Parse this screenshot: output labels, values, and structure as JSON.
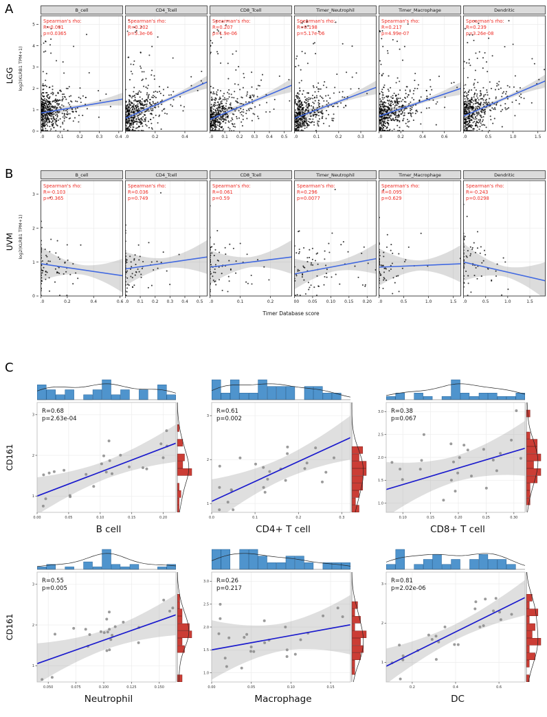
{
  "chart_data": {
    "type": "scatter",
    "description": "Correlation scatter panels: immune cell infiltration scores vs KLRB1/CD161 expression",
    "colors": {
      "trend_ab": "#4169E1",
      "trend_c": "#1a1acd",
      "band": "#969696",
      "annotation_ab": "#EE2B24",
      "annotation_c": "#111111",
      "strip_bg": "#DBDBDB",
      "hist_top": "#4F94CD",
      "hist_right": "#CB3D35",
      "grid": "#EBEBEB",
      "point_ab": "#000000",
      "point_c": "#8a8a8a"
    },
    "panels": {
      "A": {
        "letter": "A",
        "row_label": "LGG",
        "y_label": "log2(KLRB1 TPM+1)",
        "y_domain": [
          0,
          5.4
        ],
        "y_ticks": [
          0,
          1,
          2,
          3,
          4,
          5
        ],
        "n_points": 480,
        "plots": [
          {
            "title": "B_cell",
            "stats_header": "Spearman's rho:",
            "r": "R=0.091",
            "p": "p=0.0365",
            "x_domain": [
              0,
              0.42
            ],
            "x_ticks": [
              0,
              0.1,
              0.2,
              0.3,
              0.4
            ],
            "x_tick_labels": [
              "0.0",
              "0.1",
              "0.2",
              "0.3",
              "0.4"
            ],
            "x_scale": 0.06,
            "trend": {
              "y0": 0.85,
              "y1": 1.5
            },
            "noise": 0.5,
            "band": [
              0.08,
              0.3
            ],
            "high_frac": 0.05,
            "seed": 11
          },
          {
            "title": "CD4_Tcell",
            "stats_header": "Spearman's rho:",
            "r": "R=0.202",
            "p": "p=3.3e-06",
            "x_domain": [
              0,
              0.55
            ],
            "x_ticks": [
              0,
              0.2,
              0.4
            ],
            "x_tick_labels": [
              "0.0",
              "0.2",
              "0.4"
            ],
            "x_scale": 0.09,
            "trend": {
              "y0": 0.6,
              "y1": 2.3
            },
            "noise": 0.5,
            "band": [
              0.08,
              0.3
            ],
            "high_frac": 0.05,
            "seed": 22
          },
          {
            "title": "CD8_Tcell",
            "stats_header": "Spearman's rho:",
            "r": "R=0.207",
            "p": "p=1.9e-06",
            "x_domain": [
              0,
              0.55
            ],
            "x_ticks": [
              0,
              0.1,
              0.2,
              0.3,
              0.4,
              0.5
            ],
            "x_tick_labels": [
              "0.0",
              "0.1",
              "0.2",
              "0.3",
              "0.4",
              "0.5"
            ],
            "x_scale": 0.09,
            "trend": {
              "y0": 0.55,
              "y1": 2.15
            },
            "noise": 0.5,
            "band": [
              0.08,
              0.32
            ],
            "high_frac": 0.05,
            "seed": 33
          },
          {
            "title": "Timer_Neutrophil",
            "stats_header": "Spearman's rho:",
            "r": "R=0.198",
            "p": "p=5.17e-06",
            "x_domain": [
              0,
              0.37
            ],
            "x_ticks": [
              0,
              0.1,
              0.2,
              0.3
            ],
            "x_tick_labels": [
              "0.0",
              "0.1",
              "0.2",
              "0.3"
            ],
            "x_scale": 0.06,
            "trend": {
              "y0": 0.6,
              "y1": 2.05
            },
            "noise": 0.5,
            "band": [
              0.08,
              0.32
            ],
            "high_frac": 0.05,
            "seed": 44
          },
          {
            "title": "Timer_Macrophage",
            "stats_header": "Spearman's rho:",
            "r": "R=0.217",
            "p": "p=4.99e-07",
            "x_domain": [
              0,
              0.75
            ],
            "x_ticks": [
              0,
              0.2,
              0.4,
              0.6
            ],
            "x_tick_labels": [
              "0.0",
              "0.2",
              "0.4",
              "0.6"
            ],
            "x_scale": 0.13,
            "trend": {
              "y0": 0.7,
              "y1": 2.0
            },
            "noise": 0.5,
            "band": [
              0.08,
              0.3
            ],
            "high_frac": 0.05,
            "seed": 55
          },
          {
            "title": "Dendritic",
            "stats_header": "Spearman's rho:",
            "r": "R=0.239",
            "p": "p=3.26e-08",
            "x_domain": [
              0,
              1.65
            ],
            "x_ticks": [
              0,
              0.5,
              1.0,
              1.5
            ],
            "x_tick_labels": [
              "0.0",
              "0.5",
              "1.0",
              "1.5"
            ],
            "x_scale": 0.28,
            "trend": {
              "y0": 0.7,
              "y1": 2.35
            },
            "noise": 0.5,
            "band": [
              0.08,
              0.3
            ],
            "high_frac": 0.05,
            "seed": 66
          }
        ]
      },
      "B": {
        "letter": "B",
        "row_label": "UVM",
        "y_label": "log2(KLRB1 TPM+1)",
        "x_label": "Timer Database score",
        "y_domain": [
          0,
          3.4
        ],
        "y_ticks": [
          0,
          1,
          2,
          3
        ],
        "n_points": 79,
        "plots": [
          {
            "title": "B_cell",
            "stats_header": "Spearman's rho:",
            "r": "R=-0.103",
            "p": "p=0.365",
            "x_domain": [
              0,
              0.62
            ],
            "x_ticks": [
              0,
              0.2,
              0.4,
              0.6
            ],
            "x_tick_labels": [
              "0.0",
              "0.2",
              "0.4",
              "0.6"
            ],
            "x_scale": 0.09,
            "zero_frac": 0.3,
            "trend": {
              "y0": 0.95,
              "y1": 0.6
            },
            "noise": 0.45,
            "band": [
              0.14,
              0.5
            ],
            "high_frac": 0.04,
            "seed": 71
          },
          {
            "title": "CD4_Tcell",
            "stats_header": "Spearman's rho:",
            "r": "R=0.036",
            "p": "p=0.749",
            "x_domain": [
              0,
              0.55
            ],
            "x_ticks": [
              0,
              0.1,
              0.2,
              0.3,
              0.4,
              0.5
            ],
            "x_tick_labels": [
              "0.0",
              "0.1",
              "0.2",
              "0.3",
              "0.4",
              "0.5"
            ],
            "x_scale": 0.1,
            "zero_frac": 0.28,
            "trend": {
              "y0": 0.8,
              "y1": 1.15
            },
            "noise": 0.45,
            "band": [
              0.15,
              0.5
            ],
            "high_frac": 0.04,
            "seed": 72
          },
          {
            "title": "CD8_Tcell",
            "stats_header": "Spearman's rho:",
            "r": "R=0.061",
            "p": "p=0.59",
            "x_domain": [
              0,
              0.27
            ],
            "x_ticks": [
              0,
              0.1,
              0.2
            ],
            "x_tick_labels": [
              "0.0",
              "0.1",
              "0.2"
            ],
            "x_scale": 0.05,
            "zero_frac": 0.32,
            "trend": {
              "y0": 0.85,
              "y1": 1.15
            },
            "noise": 0.45,
            "band": [
              0.15,
              0.5
            ],
            "high_frac": 0.04,
            "seed": 73
          },
          {
            "title": "Timer_Neutrophil",
            "stats_header": "Spearman's rho:",
            "r": "R=0.296",
            "p": "p=0.0077",
            "x_domain": [
              0,
              0.225
            ],
            "x_ticks": [
              0,
              0.05,
              0.1,
              0.15,
              0.2
            ],
            "x_tick_labels": [
              "0.00",
              "0.05",
              "0.10",
              "0.15",
              "0.20"
            ],
            "x_scale": 0.07,
            "zero_frac": 0.03,
            "trend": {
              "y0": 0.65,
              "y1": 1.1
            },
            "noise": 0.45,
            "band": [
              0.14,
              0.45
            ],
            "high_frac": 0.04,
            "seed": 74
          },
          {
            "title": "Timer_Macrophage",
            "stats_header": "Spearman's rho:",
            "r": "R=0.095",
            "p": "p=0.629",
            "x_domain": [
              0,
              1.65
            ],
            "x_ticks": [
              0,
              0.5,
              1.0,
              1.5
            ],
            "x_tick_labels": [
              "0.0",
              "0.5",
              "1.0",
              "1.5"
            ],
            "x_scale": 0.3,
            "zero_frac": 0.38,
            "trend": {
              "y0": 0.85,
              "y1": 0.95
            },
            "noise": 0.45,
            "band": [
              0.15,
              0.55
            ],
            "high_frac": 0.04,
            "seed": 75
          },
          {
            "title": "Dendritic",
            "stats_header": "Spearman's rho:",
            "r": "R=-0.243",
            "p": "p=0.0298",
            "x_domain": [
              0,
              1.85
            ],
            "x_ticks": [
              0,
              0.5,
              1.0,
              1.5
            ],
            "x_tick_labels": [
              "0.0",
              "0.5",
              "1.0",
              "1.5"
            ],
            "x_scale": 0.33,
            "zero_frac": 0.3,
            "trend": {
              "y0": 1.0,
              "y1": 0.45
            },
            "noise": 0.45,
            "band": [
              0.15,
              0.55
            ],
            "high_frac": 0.04,
            "seed": 76
          }
        ]
      },
      "C": {
        "letter": "C",
        "row_label": "CD161",
        "n_points": 24,
        "plots": [
          {
            "title": "B cell",
            "r": "R=0.68",
            "p": "p=2.63e-04",
            "x_domain": [
              0,
              0.22
            ],
            "x_ticks": [
              0,
              0.05,
              0.1,
              0.15,
              0.2
            ],
            "x_tick_labels": [
              "0.00",
              "0.05",
              "0.10",
              "0.15",
              "0.20"
            ],
            "y_domain": [
              0.6,
              3.3
            ],
            "y_ticks": [
              1,
              2,
              3
            ],
            "y_tick_labels": [
              "1",
              "2",
              "3"
            ],
            "x_pow": 1.25,
            "trend": {
              "y0": 1.0,
              "y1": 2.3
            },
            "noise": 0.34,
            "band": [
              0.22,
              0.46
            ],
            "seed": 81
          },
          {
            "title": "CD4+ T cell",
            "r": "R=0.61",
            "p": "p=0.002",
            "x_domain": [
              0,
              0.32
            ],
            "x_ticks": [
              0,
              0.1,
              0.2,
              0.3
            ],
            "x_tick_labels": [
              "0.0",
              "0.1",
              "0.2",
              "0.3"
            ],
            "y_domain": [
              0.8,
              3.3
            ],
            "y_ticks": [
              1,
              2,
              3
            ],
            "y_tick_labels": [
              "1",
              "2",
              "3"
            ],
            "x_pow": 1.4,
            "trend": {
              "y0": 1.05,
              "y1": 2.5
            },
            "noise": 0.38,
            "band": [
              0.25,
              0.5
            ],
            "seed": 82
          },
          {
            "title": "CD8+ T cell",
            "r": "R=0.38",
            "p": "p=0.067",
            "x_domain": [
              0.07,
              0.32
            ],
            "x_ticks": [
              0.1,
              0.15,
              0.2,
              0.25,
              0.3
            ],
            "x_tick_labels": [
              "0.10",
              "0.15",
              "0.20",
              "0.25",
              "0.30"
            ],
            "y_domain": [
              0.8,
              3.2
            ],
            "y_ticks": [
              1,
              1.5,
              2,
              2.5,
              3
            ],
            "y_tick_labels": [
              "1.0",
              "1.5",
              "2.0",
              "2.5",
              "3.0"
            ],
            "x_pow": 0.9,
            "trend": {
              "y0": 1.3,
              "y1": 2.2
            },
            "noise": 0.42,
            "band": [
              0.28,
              0.6
            ],
            "seed": 83
          },
          {
            "title": "Neutrophil",
            "r": "R=0.55",
            "p": "p=0.005",
            "x_domain": [
              0.04,
              0.165
            ],
            "x_ticks": [
              0.05,
              0.075,
              0.1,
              0.125,
              0.15
            ],
            "x_tick_labels": [
              "0.050",
              "0.075",
              "0.100",
              "0.125",
              "0.150"
            ],
            "y_domain": [
              0.6,
              3.3
            ],
            "y_ticks": [
              1,
              2,
              3
            ],
            "y_tick_labels": [
              "1",
              "2",
              "3"
            ],
            "x_pow": 1.0,
            "trend": {
              "y0": 1.05,
              "y1": 2.25
            },
            "noise": 0.35,
            "band": [
              0.24,
              0.5
            ],
            "seed": 84
          },
          {
            "title": "Macrophage",
            "r": "R=0.26",
            "p": "p=0.217",
            "x_domain": [
              0,
              0.175
            ],
            "x_ticks": [
              0,
              0.05,
              0.1,
              0.15
            ],
            "x_tick_labels": [
              "0.00",
              "0.05",
              "0.10",
              "0.15"
            ],
            "y_domain": [
              0.8,
              3.2
            ],
            "y_ticks": [
              1,
              1.5,
              2,
              2.5,
              3
            ],
            "y_tick_labels": [
              "1.0",
              "1.5",
              "2.0",
              "2.5",
              "3.0"
            ],
            "x_pow": 1.6,
            "trend": {
              "y0": 1.5,
              "y1": 2.05
            },
            "noise": 0.33,
            "band": [
              0.3,
              0.65
            ],
            "seed": 85
          },
          {
            "title": "DC",
            "r": "R=0.81",
            "p": "p=2.02e-06",
            "x_domain": [
              0.08,
              0.72
            ],
            "x_ticks": [
              0.2,
              0.4,
              0.6
            ],
            "x_tick_labels": [
              "0.2",
              "0.4",
              "0.6"
            ],
            "y_domain": [
              0.5,
              3.3
            ],
            "y_ticks": [
              1,
              2,
              3
            ],
            "y_tick_labels": [
              "1",
              "2",
              "3"
            ],
            "x_pow": 1.1,
            "trend": {
              "y0": 0.9,
              "y1": 2.65
            },
            "noise": 0.28,
            "band": [
              0.2,
              0.45
            ],
            "seed": 86
          }
        ]
      }
    }
  }
}
